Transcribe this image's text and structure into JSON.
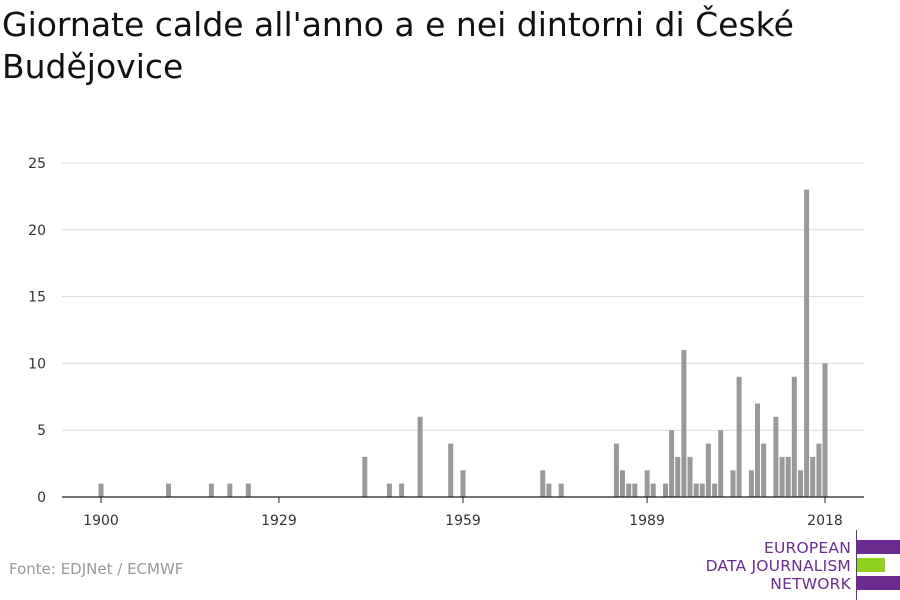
{
  "title": "Giornate calde all'anno a e nei dintorni di České Budějovice",
  "source": "Fonte: EDJNet / ECMWF",
  "logo": {
    "lines": [
      "EUROPEAN",
      "DATA JOURNALISM",
      "NETWORK"
    ],
    "colors": {
      "purple": "#6a2c91",
      "green": "#8fd11e"
    }
  },
  "chart_data": {
    "type": "bar",
    "title": "Giornate calde all'anno a e nei dintorni di České Budějovice",
    "xlabel": "",
    "ylabel": "",
    "xlim": [
      1900,
      2020
    ],
    "ylim": [
      0,
      25
    ],
    "x_ticks": [
      1900,
      1929,
      1959,
      1989,
      2018
    ],
    "y_ticks": [
      0,
      5,
      10,
      15,
      20,
      25
    ],
    "grid": true,
    "bar_color": "#999999",
    "x": [
      1900,
      1911,
      1918,
      1921,
      1924,
      1943,
      1947,
      1949,
      1952,
      1957,
      1959,
      1972,
      1973,
      1975,
      1984,
      1985,
      1986,
      1987,
      1989,
      1990,
      1992,
      1993,
      1995,
      1996,
      1998,
      1999,
      2000,
      2001,
      2003,
      2004,
      2006,
      2007,
      2008,
      2010,
      2011,
      2012,
      2013,
      2014,
      2015,
      2016,
      2017,
      2018
    ],
    "values": [
      1,
      1,
      1,
      1,
      1,
      3,
      1,
      1,
      6,
      4,
      2,
      2,
      1,
      1,
      4,
      2,
      1,
      1,
      2,
      1,
      1,
      5,
      11,
      3,
      1,
      4,
      1,
      5,
      2,
      9,
      2,
      7,
      4,
      6,
      3,
      3,
      9,
      2,
      23,
      3,
      4,
      10
    ],
    "values_extra": {
      "1994": 3,
      "1997": 1
    }
  }
}
